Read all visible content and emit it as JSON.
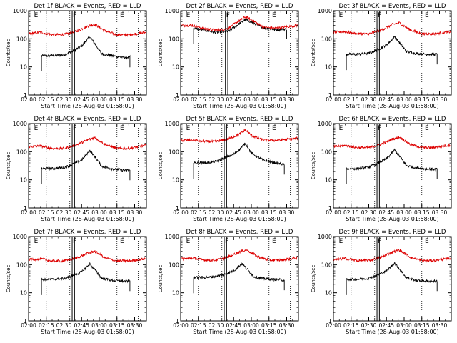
{
  "figure": {
    "ylabel": "Counts/sec",
    "xlabel": "Start Time (28-Aug-03 01:58:00)",
    "x_ticks": [
      "02:00",
      "02:15",
      "02:30",
      "02:45",
      "03:00",
      "03:15",
      "03:30"
    ],
    "y_ticks": [
      "1",
      "10",
      "100",
      "1000"
    ],
    "interval_markers": {
      "E_left": "E",
      "F": "F",
      "E_right": "E"
    },
    "colors": {
      "events": "#000000",
      "lld": "#dd0000",
      "axes": "#000000"
    }
  },
  "chart_data": [
    {
      "type": "line",
      "title": "Det 1f BLACK = Events, RED = LLD",
      "x_unit": "time (28-Aug-03)",
      "xlim": [
        "02:00",
        "03:40"
      ],
      "ylim": [
        1,
        1000
      ],
      "yscale": "log",
      "markers": {
        "E_left": "02:04",
        "F_start": "02:37",
        "F_end": "02:39",
        "dotted": [
          "02:15",
          "02:35",
          "03:15",
          "03:33"
        ],
        "E_right": "03:17"
      },
      "series": [
        {
          "name": "Events",
          "color": "#000000",
          "x": [
            "02:11",
            "02:20",
            "02:30",
            "02:37",
            "02:45",
            "02:52",
            "02:57",
            "03:02",
            "03:10",
            "03:20",
            "03:26"
          ],
          "y": [
            25,
            25,
            27,
            35,
            55,
            120,
            60,
            30,
            25,
            22,
            22
          ]
        },
        {
          "name": "LLD",
          "color": "#dd0000",
          "x": [
            "02:00",
            "02:10",
            "02:20",
            "02:30",
            "02:40",
            "02:50",
            "02:56",
            "03:05",
            "03:15",
            "03:25",
            "03:40"
          ],
          "y": [
            150,
            170,
            140,
            140,
            180,
            280,
            330,
            190,
            140,
            140,
            170
          ]
        }
      ]
    },
    {
      "type": "line",
      "title": "Det 2f BLACK = Events, RED = LLD",
      "x_unit": "time (28-Aug-03)",
      "xlim": [
        "02:00",
        "03:40"
      ],
      "ylim": [
        1,
        1000
      ],
      "yscale": "log",
      "markers": {
        "E_left": "02:04",
        "F_start": "02:38",
        "F_end": "02:40",
        "dotted": [
          "02:15",
          "02:35",
          "03:15",
          "03:33"
        ],
        "E_right": "03:17"
      },
      "series": [
        {
          "name": "Events",
          "color": "#000000",
          "x": [
            "02:11",
            "02:20",
            "02:30",
            "02:40",
            "02:50",
            "02:55",
            "03:00",
            "03:10",
            "03:20",
            "03:30"
          ],
          "y": [
            240,
            200,
            170,
            180,
            350,
            480,
            400,
            250,
            210,
            220
          ]
        },
        {
          "name": "LLD",
          "color": "#dd0000",
          "x": [
            "02:00",
            "02:10",
            "02:20",
            "02:30",
            "02:40",
            "02:50",
            "02:55",
            "03:00",
            "03:10",
            "03:20",
            "03:40"
          ],
          "y": [
            300,
            300,
            230,
            200,
            230,
            450,
            600,
            480,
            260,
            240,
            300
          ]
        }
      ]
    },
    {
      "type": "line",
      "title": "Det 3f BLACK = Events, RED = LLD",
      "x_unit": "time (28-Aug-03)",
      "xlim": [
        "02:00",
        "03:40"
      ],
      "ylim": [
        1,
        1000
      ],
      "yscale": "log",
      "markers": {
        "E_left": "02:04",
        "F_start": "02:37",
        "F_end": "02:39",
        "dotted": [
          "02:15",
          "02:35",
          "03:15",
          "03:33"
        ],
        "E_right": "03:17"
      },
      "series": [
        {
          "name": "Events",
          "color": "#000000",
          "x": [
            "02:11",
            "02:20",
            "02:30",
            "02:37",
            "02:45",
            "02:52",
            "02:57",
            "03:02",
            "03:10",
            "03:20",
            "03:28"
          ],
          "y": [
            28,
            28,
            30,
            40,
            60,
            120,
            65,
            35,
            30,
            28,
            28
          ]
        },
        {
          "name": "LLD",
          "color": "#dd0000",
          "x": [
            "02:00",
            "02:10",
            "02:20",
            "02:30",
            "02:40",
            "02:50",
            "02:56",
            "03:05",
            "03:15",
            "03:25",
            "03:40"
          ],
          "y": [
            170,
            180,
            150,
            150,
            200,
            320,
            370,
            210,
            150,
            150,
            180
          ]
        }
      ]
    },
    {
      "type": "line",
      "title": "Det 4f BLACK = Events, RED = LLD",
      "x_unit": "time (28-Aug-03)",
      "xlim": [
        "02:00",
        "03:40"
      ],
      "ylim": [
        1,
        1000
      ],
      "yscale": "log",
      "markers": {
        "E_left": "02:04",
        "F_start": "02:37",
        "F_end": "02:39",
        "dotted": [
          "02:15",
          "02:35",
          "03:15",
          "03:33"
        ],
        "E_right": "03:17"
      },
      "series": [
        {
          "name": "Events",
          "color": "#000000",
          "x": [
            "02:11",
            "02:20",
            "02:30",
            "02:37",
            "02:45",
            "02:52",
            "02:57",
            "03:02",
            "03:10",
            "03:20",
            "03:26"
          ],
          "y": [
            25,
            25,
            27,
            35,
            50,
            110,
            60,
            30,
            25,
            22,
            22
          ]
        },
        {
          "name": "LLD",
          "color": "#dd0000",
          "x": [
            "02:00",
            "02:10",
            "02:20",
            "02:30",
            "02:40",
            "02:50",
            "02:56",
            "03:05",
            "03:15",
            "03:25",
            "03:40"
          ],
          "y": [
            150,
            160,
            130,
            130,
            170,
            260,
            320,
            180,
            130,
            130,
            170
          ]
        }
      ]
    },
    {
      "type": "line",
      "title": "Det 5f BLACK = Events, RED = LLD",
      "x_unit": "time (28-Aug-03)",
      "xlim": [
        "02:00",
        "03:40"
      ],
      "ylim": [
        1,
        1000
      ],
      "yscale": "log",
      "markers": {
        "E_left": "02:04",
        "F_start": "02:37",
        "F_end": "02:39",
        "dotted": [
          "02:15",
          "02:35",
          "03:15",
          "03:33"
        ],
        "E_right": "03:17"
      },
      "series": [
        {
          "name": "Events",
          "color": "#000000",
          "x": [
            "02:11",
            "02:20",
            "02:30",
            "02:37",
            "02:45",
            "02:50",
            "02:55",
            "03:00",
            "03:10",
            "03:20",
            "03:28"
          ],
          "y": [
            40,
            40,
            45,
            60,
            80,
            120,
            200,
            90,
            50,
            40,
            35
          ]
        },
        {
          "name": "LLD",
          "color": "#dd0000",
          "x": [
            "02:00",
            "02:10",
            "02:20",
            "02:30",
            "02:40",
            "02:50",
            "02:55",
            "03:00",
            "03:10",
            "03:20",
            "03:40"
          ],
          "y": [
            250,
            260,
            230,
            230,
            280,
            420,
            600,
            380,
            260,
            250,
            300
          ]
        }
      ]
    },
    {
      "type": "line",
      "title": "Det 6f BLACK = Events, RED = LLD",
      "x_unit": "time (28-Aug-03)",
      "xlim": [
        "02:00",
        "03:40"
      ],
      "ylim": [
        1,
        1000
      ],
      "yscale": "log",
      "markers": {
        "E_left": "02:04",
        "F_start": "02:37",
        "F_end": "02:39",
        "dotted": [
          "02:15",
          "02:35",
          "03:15",
          "03:33"
        ],
        "E_right": "03:17"
      },
      "series": [
        {
          "name": "Events",
          "color": "#000000",
          "x": [
            "02:11",
            "02:20",
            "02:30",
            "02:37",
            "02:45",
            "02:52",
            "02:57",
            "03:02",
            "03:10",
            "03:20",
            "03:28"
          ],
          "y": [
            25,
            25,
            28,
            38,
            55,
            115,
            62,
            32,
            27,
            24,
            24
          ]
        },
        {
          "name": "LLD",
          "color": "#dd0000",
          "x": [
            "02:00",
            "02:10",
            "02:20",
            "02:30",
            "02:40",
            "02:50",
            "02:56",
            "03:05",
            "03:15",
            "03:25",
            "03:40"
          ],
          "y": [
            150,
            165,
            140,
            140,
            180,
            280,
            330,
            185,
            140,
            140,
            175
          ]
        }
      ]
    },
    {
      "type": "line",
      "title": "Det 7f BLACK = Events, RED = LLD",
      "x_unit": "time (28-Aug-03)",
      "xlim": [
        "02:00",
        "03:40"
      ],
      "ylim": [
        1,
        1000
      ],
      "yscale": "log",
      "markers": {
        "E_left": "02:04",
        "F_start": "02:37",
        "F_end": "02:39",
        "dotted": [
          "02:15",
          "02:35",
          "03:15",
          "03:33"
        ],
        "E_right": "03:17"
      },
      "series": [
        {
          "name": "Events",
          "color": "#000000",
          "x": [
            "02:11",
            "02:20",
            "02:30",
            "02:37",
            "02:45",
            "02:52",
            "02:57",
            "03:02",
            "03:10",
            "03:20",
            "03:26"
          ],
          "y": [
            30,
            30,
            32,
            40,
            55,
            105,
            60,
            33,
            28,
            26,
            26
          ]
        },
        {
          "name": "LLD",
          "color": "#dd0000",
          "x": [
            "02:00",
            "02:10",
            "02:20",
            "02:30",
            "02:40",
            "02:50",
            "02:56",
            "03:05",
            "03:15",
            "03:25",
            "03:40"
          ],
          "y": [
            150,
            160,
            135,
            135,
            170,
            250,
            300,
            175,
            135,
            135,
            165
          ]
        }
      ]
    },
    {
      "type": "line",
      "title": "Det 8f BLACK = Events, RED = LLD",
      "x_unit": "time (28-Aug-03)",
      "xlim": [
        "02:00",
        "03:40"
      ],
      "ylim": [
        1,
        1000
      ],
      "yscale": "log",
      "markers": {
        "E_left": "02:04",
        "F_start": "02:37",
        "F_end": "02:39",
        "dotted": [
          "02:15",
          "02:35",
          "03:15",
          "03:33"
        ],
        "E_right": "03:17"
      },
      "series": [
        {
          "name": "Events",
          "color": "#000000",
          "x": [
            "02:11",
            "02:20",
            "02:30",
            "02:37",
            "02:45",
            "02:52",
            "02:57",
            "03:02",
            "03:10",
            "03:20",
            "03:28"
          ],
          "y": [
            35,
            35,
            38,
            45,
            60,
            110,
            65,
            38,
            32,
            30,
            28
          ]
        },
        {
          "name": "LLD",
          "color": "#dd0000",
          "x": [
            "02:00",
            "02:10",
            "02:20",
            "02:30",
            "02:40",
            "02:50",
            "02:56",
            "03:05",
            "03:15",
            "03:25",
            "03:40"
          ],
          "y": [
            160,
            170,
            145,
            145,
            185,
            290,
            340,
            195,
            145,
            145,
            180
          ]
        }
      ]
    },
    {
      "type": "line",
      "title": "Det 9f BLACK = Events, RED = LLD",
      "x_unit": "time (28-Aug-03)",
      "xlim": [
        "02:00",
        "03:40"
      ],
      "ylim": [
        1,
        1000
      ],
      "yscale": "log",
      "markers": {
        "E_left": "02:04",
        "F_start": "02:37",
        "F_end": "02:39",
        "dotted": [
          "02:15",
          "02:35",
          "03:15",
          "03:33"
        ],
        "E_right": "03:17"
      },
      "series": [
        {
          "name": "Events",
          "color": "#000000",
          "x": [
            "02:11",
            "02:20",
            "02:30",
            "02:37",
            "02:45",
            "02:52",
            "02:57",
            "03:02",
            "03:10",
            "03:20",
            "03:28"
          ],
          "y": [
            30,
            30,
            33,
            42,
            60,
            115,
            62,
            34,
            28,
            26,
            26
          ]
        },
        {
          "name": "LLD",
          "color": "#dd0000",
          "x": [
            "02:00",
            "02:10",
            "02:20",
            "02:30",
            "02:40",
            "02:50",
            "02:56",
            "03:05",
            "03:15",
            "03:25",
            "03:40"
          ],
          "y": [
            150,
            165,
            140,
            140,
            180,
            280,
            330,
            185,
            140,
            140,
            170
          ]
        }
      ]
    }
  ]
}
